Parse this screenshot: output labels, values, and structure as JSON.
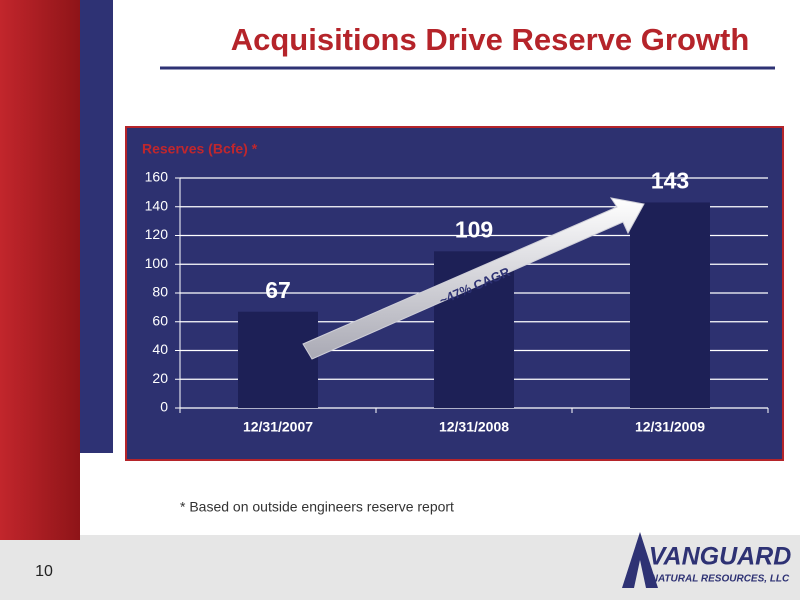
{
  "chart_data": {
    "type": "bar",
    "title": "Acquisitions Drive Reserve Growth",
    "ylabel": "Reserves (Bcfe) *",
    "categories": [
      "12/31/2007",
      "12/31/2008",
      "12/31/2009"
    ],
    "values": [
      67,
      109,
      143
    ],
    "color": "#1d2056",
    "ylim": [
      0,
      160
    ],
    "yticks": [
      0,
      20,
      40,
      60,
      80,
      100,
      120,
      140,
      160
    ],
    "grid": true,
    "annotation": "~47% CAGR"
  },
  "footnote": "* Based on outside engineers reserve report",
  "page_number": "10",
  "logo": {
    "name": "VANGUARD",
    "subtitle": "NATURAL RESOURCES, LLC"
  }
}
